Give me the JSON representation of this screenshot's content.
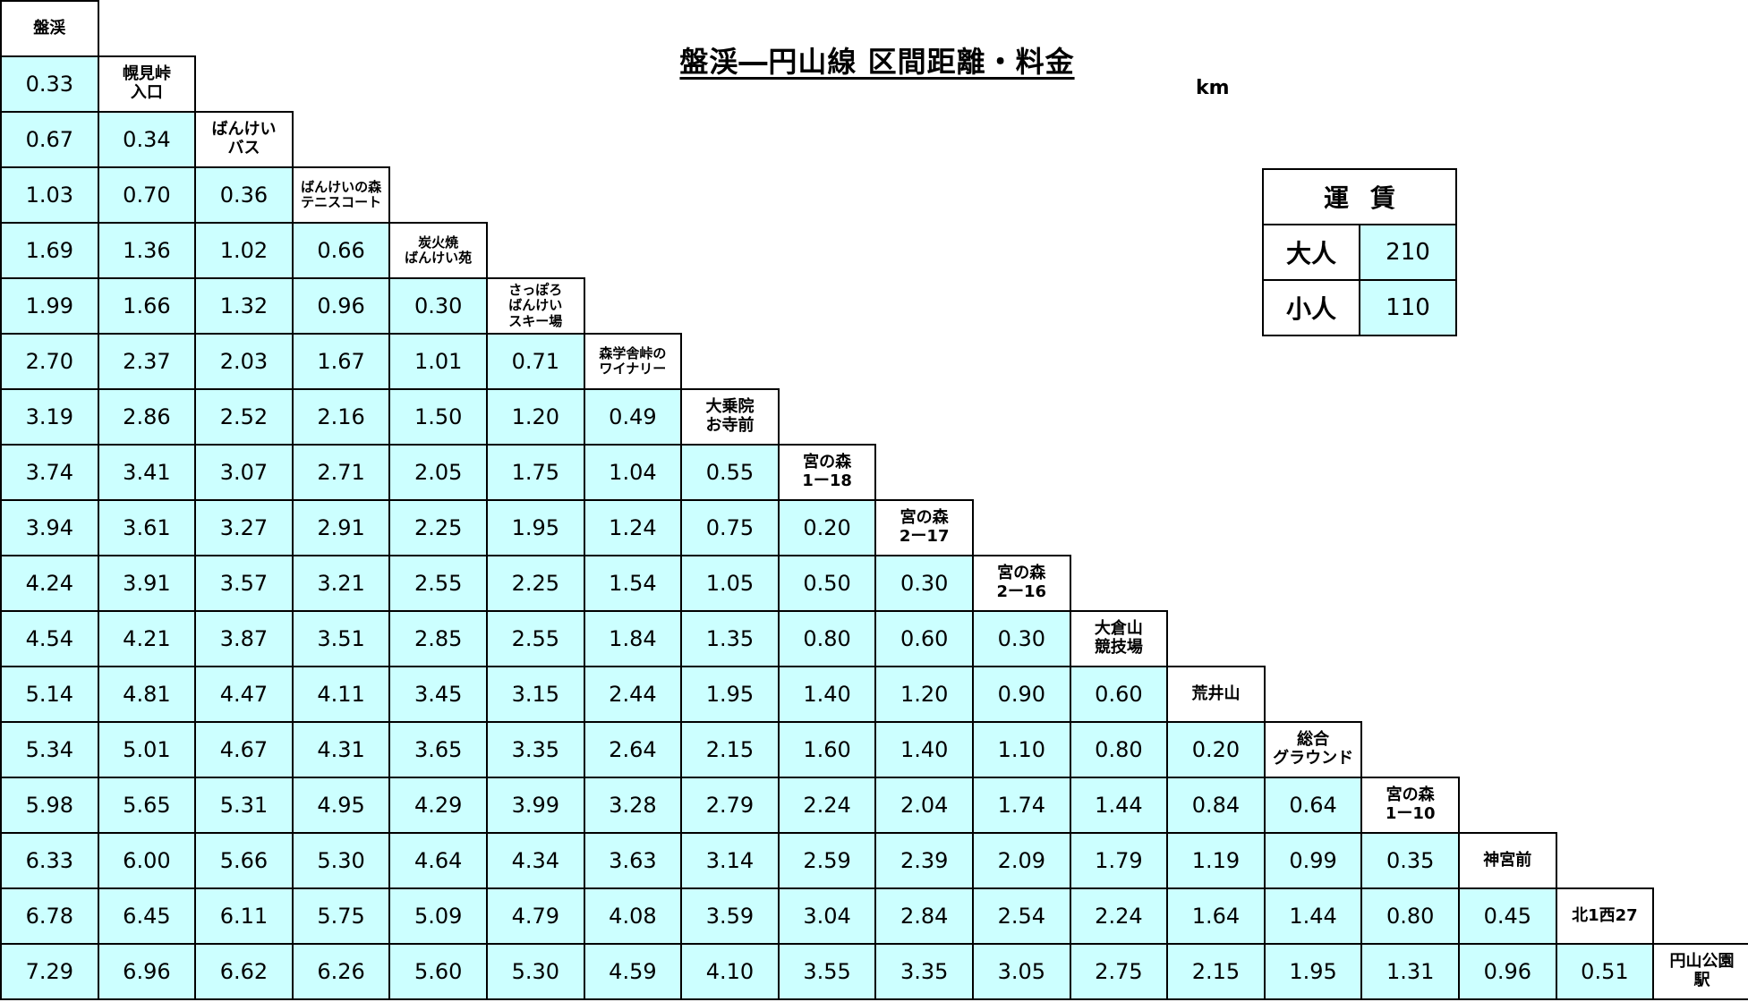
{
  "title": "盤渓―円山線  区間距離・料金",
  "unit": "km",
  "colors": {
    "value_bg": "#ccffff",
    "station_bg": "#ffffff",
    "border": "#000000"
  },
  "stations": [
    "盤渓",
    "幌見峠\n入口",
    "ばんけい\nバス",
    "ばんけいの森\nテニスコート",
    "炭火焼\nばんけい苑",
    "さっぽろ\nばんけい\nスキー場",
    "森学舎峠の\nワイナリー",
    "大乗院\nお寺前",
    "宮の森\n1ー18",
    "宮の森\n2ー17",
    "宮の森\n2ー16",
    "大倉山\n競技場",
    "荒井山",
    "総合\nグラウンド",
    "宮の森\n1ー10",
    "神宮前",
    "北1西27",
    "円山公園\n駅"
  ],
  "distances": [
    [
      "0.33"
    ],
    [
      "0.67",
      "0.34"
    ],
    [
      "1.03",
      "0.70",
      "0.36"
    ],
    [
      "1.69",
      "1.36",
      "1.02",
      "0.66"
    ],
    [
      "1.99",
      "1.66",
      "1.32",
      "0.96",
      "0.30"
    ],
    [
      "2.70",
      "2.37",
      "2.03",
      "1.67",
      "1.01",
      "0.71"
    ],
    [
      "3.19",
      "2.86",
      "2.52",
      "2.16",
      "1.50",
      "1.20",
      "0.49"
    ],
    [
      "3.74",
      "3.41",
      "3.07",
      "2.71",
      "2.05",
      "1.75",
      "1.04",
      "0.55"
    ],
    [
      "3.94",
      "3.61",
      "3.27",
      "2.91",
      "2.25",
      "1.95",
      "1.24",
      "0.75",
      "0.20"
    ],
    [
      "4.24",
      "3.91",
      "3.57",
      "3.21",
      "2.55",
      "2.25",
      "1.54",
      "1.05",
      "0.50",
      "0.30"
    ],
    [
      "4.54",
      "4.21",
      "3.87",
      "3.51",
      "2.85",
      "2.55",
      "1.84",
      "1.35",
      "0.80",
      "0.60",
      "0.30"
    ],
    [
      "5.14",
      "4.81",
      "4.47",
      "4.11",
      "3.45",
      "3.15",
      "2.44",
      "1.95",
      "1.40",
      "1.20",
      "0.90",
      "0.60"
    ],
    [
      "5.34",
      "5.01",
      "4.67",
      "4.31",
      "3.65",
      "3.35",
      "2.64",
      "2.15",
      "1.60",
      "1.40",
      "1.10",
      "0.80",
      "0.20"
    ],
    [
      "5.98",
      "5.65",
      "5.31",
      "4.95",
      "4.29",
      "3.99",
      "3.28",
      "2.79",
      "2.24",
      "2.04",
      "1.74",
      "1.44",
      "0.84",
      "0.64"
    ],
    [
      "6.33",
      "6.00",
      "5.66",
      "5.30",
      "4.64",
      "4.34",
      "3.63",
      "3.14",
      "2.59",
      "2.39",
      "2.09",
      "1.79",
      "1.19",
      "0.99",
      "0.35"
    ],
    [
      "6.78",
      "6.45",
      "6.11",
      "5.75",
      "5.09",
      "4.79",
      "4.08",
      "3.59",
      "3.04",
      "2.84",
      "2.54",
      "2.24",
      "1.64",
      "1.44",
      "0.80",
      "0.45"
    ],
    [
      "7.29",
      "6.96",
      "6.62",
      "6.26",
      "5.60",
      "5.30",
      "4.59",
      "4.10",
      "3.55",
      "3.35",
      "3.05",
      "2.75",
      "2.15",
      "1.95",
      "1.31",
      "0.96",
      "0.51"
    ]
  ],
  "fare": {
    "header": "運賃",
    "adult_label": "大人",
    "adult_value": "210",
    "child_label": "小人",
    "child_value": "110"
  }
}
